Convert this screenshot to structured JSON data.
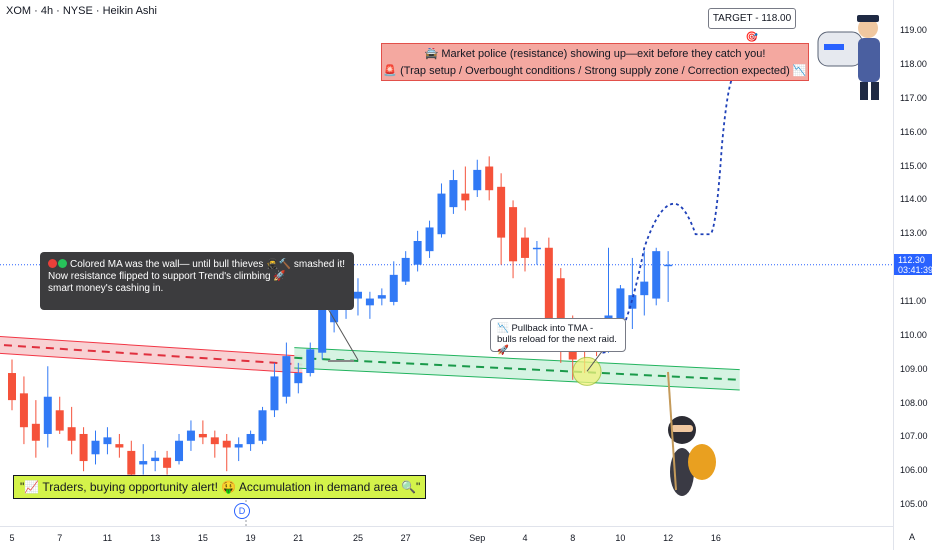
{
  "header": {
    "title": "XOM · 4h · NYSE · Heikin Ashi"
  },
  "annotations": {
    "target": "TARGET - 118.00🎯",
    "market_police_line1": "🚔 Market police (resistance) showing up—exit before they catch you!",
    "market_police_line2": "🚨 (Trap setup / Overbought conditions / Strong supply zone / Correction expected) 📉",
    "wall_note_line1": "Colored MA was the wall— until bull thieves 🥷🔨 smashed it!",
    "wall_note_line2": "Now resistance flipped to support Trend's climbing 🚀",
    "wall_note_line3": "smart money's cashing in.",
    "pullback_line1": "📉 Pullback into TMA -",
    "pullback_line2": "bulls reload for the next raid. 🚀",
    "alert": "\"📈 Traders, buying opportunity alert! 🤑 Accumulation in demand area 🔍\"",
    "event_marker": "D",
    "scale_mode": "A"
  },
  "colors": {
    "bull": "#3179f5",
    "bear": "#f5523a",
    "resistance_band": "#f7c9cb",
    "support_band": "#d0f2df",
    "accent": "#2962ff"
  },
  "current_price": {
    "value": "112.30",
    "countdown": "03:41:39"
  },
  "chart_data": {
    "type": "candlestick",
    "style": "Heikin Ashi",
    "symbol": "XOM",
    "interval": "4h",
    "exchange": "NYSE",
    "y_range": [
      104.5,
      119.8
    ],
    "y_ticks": [
      "119.00",
      "118.00",
      "117.00",
      "116.00",
      "115.00",
      "114.00",
      "113.00",
      "112.00",
      "111.00",
      "110.00",
      "109.00",
      "108.00",
      "107.00",
      "106.00",
      "105.00"
    ],
    "x_ticks": [
      {
        "label": "5",
        "index": 0
      },
      {
        "label": "7",
        "index": 4
      },
      {
        "label": "11",
        "index": 8
      },
      {
        "label": "13",
        "index": 12
      },
      {
        "label": "15",
        "index": 16
      },
      {
        "label": "19",
        "index": 20
      },
      {
        "label": "21",
        "index": 24
      },
      {
        "label": "25",
        "index": 29
      },
      {
        "label": "27",
        "index": 33
      },
      {
        "label": "Sep",
        "index": 39
      },
      {
        "label": "4",
        "index": 43
      },
      {
        "label": "8",
        "index": 47
      },
      {
        "label": "10",
        "index": 51
      },
      {
        "label": "12",
        "index": 55
      },
      {
        "label": "16",
        "index": 59
      }
    ],
    "candles": [
      {
        "o": 108.9,
        "h": 109.3,
        "l": 107.8,
        "c": 108.1
      },
      {
        "o": 108.3,
        "h": 108.8,
        "l": 106.8,
        "c": 107.3
      },
      {
        "o": 107.4,
        "h": 108.1,
        "l": 106.4,
        "c": 106.9
      },
      {
        "o": 107.1,
        "h": 109.1,
        "l": 106.7,
        "c": 108.2
      },
      {
        "o": 107.8,
        "h": 108.2,
        "l": 107.1,
        "c": 107.2
      },
      {
        "o": 107.3,
        "h": 107.9,
        "l": 106.5,
        "c": 106.9
      },
      {
        "o": 107.1,
        "h": 107.3,
        "l": 106.0,
        "c": 106.3
      },
      {
        "o": 106.5,
        "h": 107.2,
        "l": 106.2,
        "c": 106.9
      },
      {
        "o": 106.8,
        "h": 107.3,
        "l": 106.5,
        "c": 107.0
      },
      {
        "o": 106.8,
        "h": 107.1,
        "l": 106.4,
        "c": 106.7
      },
      {
        "o": 106.6,
        "h": 106.9,
        "l": 105.7,
        "c": 105.9
      },
      {
        "o": 106.2,
        "h": 106.8,
        "l": 105.9,
        "c": 106.3
      },
      {
        "o": 106.3,
        "h": 106.6,
        "l": 106.0,
        "c": 106.4
      },
      {
        "o": 106.4,
        "h": 106.6,
        "l": 105.9,
        "c": 106.1
      },
      {
        "o": 106.3,
        "h": 107.1,
        "l": 106.2,
        "c": 106.9
      },
      {
        "o": 106.9,
        "h": 107.5,
        "l": 106.6,
        "c": 107.2
      },
      {
        "o": 107.1,
        "h": 107.5,
        "l": 106.8,
        "c": 107.0
      },
      {
        "o": 107.0,
        "h": 107.2,
        "l": 106.4,
        "c": 106.8
      },
      {
        "o": 106.9,
        "h": 107.1,
        "l": 106.0,
        "c": 106.7
      },
      {
        "o": 106.7,
        "h": 107.0,
        "l": 106.3,
        "c": 106.8
      },
      {
        "o": 106.8,
        "h": 107.2,
        "l": 106.6,
        "c": 107.1
      },
      {
        "o": 106.9,
        "h": 107.9,
        "l": 106.8,
        "c": 107.8
      },
      {
        "o": 107.8,
        "h": 109.2,
        "l": 107.6,
        "c": 108.8
      },
      {
        "o": 108.2,
        "h": 109.8,
        "l": 108.0,
        "c": 109.4
      },
      {
        "o": 108.6,
        "h": 109.2,
        "l": 108.3,
        "c": 108.9
      },
      {
        "o": 108.9,
        "h": 109.8,
        "l": 108.8,
        "c": 109.6
      },
      {
        "o": 109.5,
        "h": 111.4,
        "l": 109.3,
        "c": 110.8
      },
      {
        "o": 110.4,
        "h": 111.6,
        "l": 110.1,
        "c": 111.4
      },
      {
        "o": 111.0,
        "h": 111.9,
        "l": 110.5,
        "c": 111.7
      },
      {
        "o": 111.1,
        "h": 111.7,
        "l": 110.6,
        "c": 111.3
      },
      {
        "o": 110.9,
        "h": 111.3,
        "l": 110.5,
        "c": 111.1
      },
      {
        "o": 111.1,
        "h": 111.4,
        "l": 110.9,
        "c": 111.2
      },
      {
        "o": 111.0,
        "h": 112.2,
        "l": 110.9,
        "c": 111.8
      },
      {
        "o": 111.6,
        "h": 112.5,
        "l": 111.5,
        "c": 112.3
      },
      {
        "o": 112.1,
        "h": 113.1,
        "l": 111.9,
        "c": 112.8
      },
      {
        "o": 112.5,
        "h": 113.4,
        "l": 112.3,
        "c": 113.2
      },
      {
        "o": 113.0,
        "h": 114.5,
        "l": 112.9,
        "c": 114.2
      },
      {
        "o": 113.8,
        "h": 114.9,
        "l": 113.6,
        "c": 114.6
      },
      {
        "o": 114.2,
        "h": 115.0,
        "l": 113.7,
        "c": 114.0
      },
      {
        "o": 114.3,
        "h": 115.2,
        "l": 114.1,
        "c": 114.9
      },
      {
        "o": 115.0,
        "h": 115.3,
        "l": 114.0,
        "c": 114.3
      },
      {
        "o": 114.4,
        "h": 114.8,
        "l": 112.1,
        "c": 112.9
      },
      {
        "o": 113.8,
        "h": 114.0,
        "l": 111.7,
        "c": 112.2
      },
      {
        "o": 112.9,
        "h": 113.2,
        "l": 111.9,
        "c": 112.3
      },
      {
        "o": 112.6,
        "h": 112.8,
        "l": 112.1,
        "c": 112.6
      },
      {
        "o": 112.6,
        "h": 112.9,
        "l": 109.9,
        "c": 110.2
      },
      {
        "o": 111.7,
        "h": 112.0,
        "l": 109.2,
        "c": 109.6
      },
      {
        "o": 110.4,
        "h": 110.6,
        "l": 108.7,
        "c": 109.3
      },
      {
        "o": 109.8,
        "h": 110.2,
        "l": 108.9,
        "c": 109.6
      },
      {
        "o": 109.8,
        "h": 110.0,
        "l": 109.4,
        "c": 109.7
      },
      {
        "o": 109.7,
        "h": 112.6,
        "l": 109.5,
        "c": 110.6
      },
      {
        "o": 110.4,
        "h": 111.5,
        "l": 110.1,
        "c": 111.4
      },
      {
        "o": 110.8,
        "h": 112.3,
        "l": 110.2,
        "c": 111.2
      },
      {
        "o": 111.2,
        "h": 112.5,
        "l": 110.6,
        "c": 111.6
      },
      {
        "o": 111.1,
        "h": 112.6,
        "l": 110.9,
        "c": 112.5
      },
      {
        "o": 112.1,
        "h": 112.5,
        "l": 111.0,
        "c": 112.1
      }
    ],
    "resistance_band": {
      "start_upper": 110.0,
      "start_lower": 109.5,
      "end_upper": 109.4,
      "end_lower": 108.9,
      "end_index": 24
    },
    "support_band": {
      "start_upper": 109.65,
      "start_lower": 109.05,
      "end_upper": 109.0,
      "end_lower": 108.4,
      "start_index": 24,
      "end_index": 61
    },
    "projection_path": [
      {
        "i": 49.5,
        "p": 109.5
      },
      {
        "i": 53,
        "p": 112.6
      },
      {
        "i": 55.5,
        "p": 113.9
      },
      {
        "i": 57.3,
        "p": 113.0
      },
      {
        "i": 58.5,
        "p": 113.0
      },
      {
        "i": 59.5,
        "p": 115.6
      },
      {
        "i": 60.6,
        "p": 117.7
      }
    ]
  }
}
